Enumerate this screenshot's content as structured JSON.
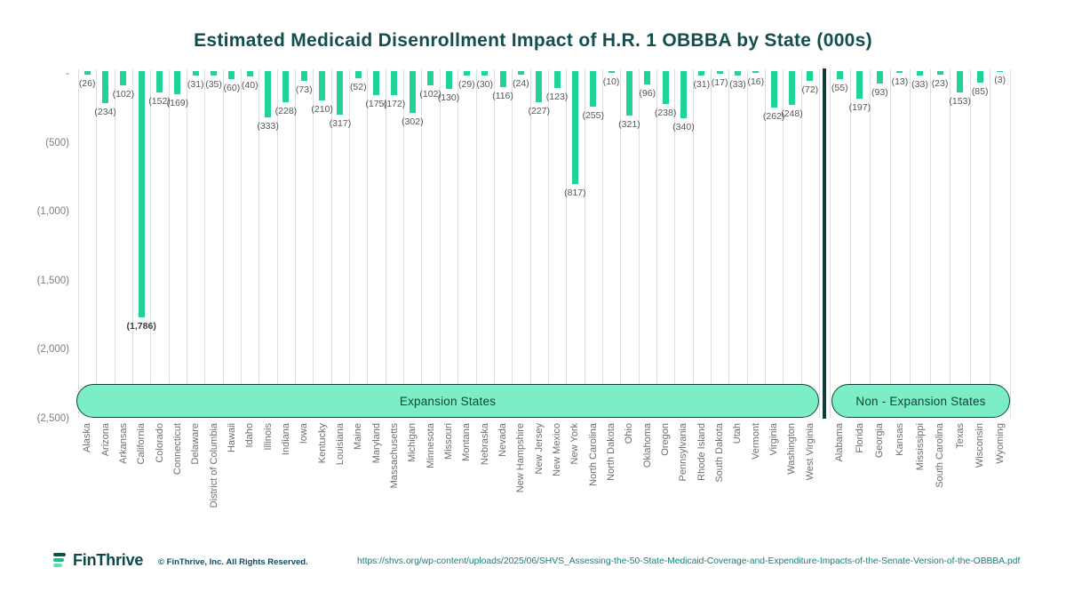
{
  "title": "Estimated Medicaid Disenrollment Impact of H.R. 1 OBBBA by State (000s)",
  "chart_data": {
    "type": "bar",
    "title": "Estimated Medicaid Disenrollment Impact of H.R. 1 OBBBA by State (000s)",
    "xlabel": "",
    "ylabel": "",
    "ylim": [
      -2500,
      0
    ],
    "yticks": [
      0,
      -500,
      -1000,
      -1500,
      -2000,
      -2500
    ],
    "ytick_labels": [
      "-",
      "(500)",
      "(1,000)",
      "(1,500)",
      "(2,000)",
      "(2,500)"
    ],
    "grid": "vertical-category-gridlines",
    "bar_color": "#1fd494",
    "value_label_format": "negative-parentheses",
    "groups": [
      {
        "label": "Expansion States",
        "items": [
          {
            "state": "Alaska",
            "value": -26,
            "label": "(26)"
          },
          {
            "state": "Arizona",
            "value": -234,
            "label": "(234)"
          },
          {
            "state": "Arkansas",
            "value": -102,
            "label": "(102)"
          },
          {
            "state": "California",
            "value": -1786,
            "label": "(1,786)"
          },
          {
            "state": "Colorado",
            "value": -152,
            "label": "(152)"
          },
          {
            "state": "Connecticut",
            "value": -169,
            "label": "(169)"
          },
          {
            "state": "Delaware",
            "value": -31,
            "label": "(31)"
          },
          {
            "state": "District of Columbia",
            "value": -35,
            "label": "(35)"
          },
          {
            "state": "Hawaii",
            "value": -60,
            "label": "(60)"
          },
          {
            "state": "Idaho",
            "value": -40,
            "label": "(40)"
          },
          {
            "state": "Illinois",
            "value": -333,
            "label": "(333)"
          },
          {
            "state": "Indiana",
            "value": -228,
            "label": "(228)"
          },
          {
            "state": "Iowa",
            "value": -73,
            "label": "(73)"
          },
          {
            "state": "Kentucky",
            "value": -210,
            "label": "(210)"
          },
          {
            "state": "Louisiana",
            "value": -317,
            "label": "(317)"
          },
          {
            "state": "Maine",
            "value": -52,
            "label": "(52)"
          },
          {
            "state": "Maryland",
            "value": -175,
            "label": "(175)"
          },
          {
            "state": "Massachusetts",
            "value": -172,
            "label": "(172)"
          },
          {
            "state": "Michigan",
            "value": -302,
            "label": "(302)"
          },
          {
            "state": "Minnesota",
            "value": -102,
            "label": "(102)"
          },
          {
            "state": "Missouri",
            "value": -130,
            "label": "(130)"
          },
          {
            "state": "Montana",
            "value": -29,
            "label": "(29)"
          },
          {
            "state": "Nebraska",
            "value": -30,
            "label": "(30)"
          },
          {
            "state": "Nevada",
            "value": -116,
            "label": "(116)"
          },
          {
            "state": "New Hampshire",
            "value": -24,
            "label": "(24)"
          },
          {
            "state": "New Jersey",
            "value": -227,
            "label": "(227)"
          },
          {
            "state": "New Mexico",
            "value": -123,
            "label": "(123)"
          },
          {
            "state": "New York",
            "value": -817,
            "label": "(817)"
          },
          {
            "state": "North Carolina",
            "value": -255,
            "label": "(255)"
          },
          {
            "state": "North Dakota",
            "value": -10,
            "label": "(10)"
          },
          {
            "state": "Ohio",
            "value": -321,
            "label": "(321)"
          },
          {
            "state": "Oklahoma",
            "value": -96,
            "label": "(96)"
          },
          {
            "state": "Oregon",
            "value": -238,
            "label": "(238)"
          },
          {
            "state": "Pennsylvania",
            "value": -340,
            "label": "(340)"
          },
          {
            "state": "Rhode Island",
            "value": -31,
            "label": "(31)"
          },
          {
            "state": "South Dakota",
            "value": -17,
            "label": "(17)"
          },
          {
            "state": "Utah",
            "value": -33,
            "label": "(33)"
          },
          {
            "state": "Vermont",
            "value": -16,
            "label": "(16)"
          },
          {
            "state": "Virginia",
            "value": -262,
            "label": "(262)"
          },
          {
            "state": "Washington",
            "value": -248,
            "label": "(248)"
          },
          {
            "state": "West Virginia",
            "value": -72,
            "label": "(72)"
          }
        ]
      },
      {
        "label": "Non - Expansion States",
        "items": [
          {
            "state": "Alabama",
            "value": -55,
            "label": "(55)"
          },
          {
            "state": "Florida",
            "value": -197,
            "label": "(197)"
          },
          {
            "state": "Georgia",
            "value": -93,
            "label": "(93)"
          },
          {
            "state": "Kansas",
            "value": -13,
            "label": "(13)"
          },
          {
            "state": "Mississippi",
            "value": -33,
            "label": "(33)"
          },
          {
            "state": "South Carolina",
            "value": -23,
            "label": "(23)"
          },
          {
            "state": "Texas",
            "value": -153,
            "label": "(153)"
          },
          {
            "state": "Wisconsin",
            "value": -85,
            "label": "(85)"
          },
          {
            "state": "Wyoming",
            "value": -3,
            "label": "(3)"
          }
        ]
      }
    ]
  },
  "footer": {
    "logo_text": "FinThrive",
    "copyright": "© FinThrive, Inc. All Rights Reserved.",
    "source_url": "https://shvs.org/wp-content/uploads/2025/06/SHVS_Assessing-the-50-State-Medicaid-Coverage-and-Expenditure-Impacts-of-the-Senate-Version-of-the-OBBBA.pdf"
  }
}
